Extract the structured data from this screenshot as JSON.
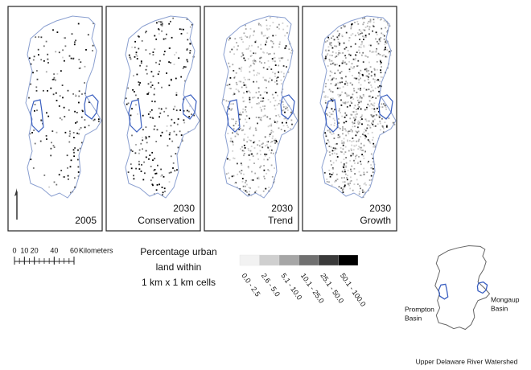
{
  "panels": [
    {
      "lines": [
        "2005"
      ]
    },
    {
      "lines": [
        "2030",
        "Conservation"
      ]
    },
    {
      "lines": [
        "2030",
        "Trend"
      ]
    },
    {
      "lines": [
        "2030",
        "Growth"
      ]
    }
  ],
  "scale_bar": {
    "ticks": [
      0,
      10,
      20,
      40,
      60
    ],
    "unit": "Kilometers"
  },
  "legend": {
    "title_lines": [
      "Percentage urban",
      "land within",
      "1 km x 1 km cells"
    ],
    "classes": [
      {
        "label": "0.0 - 2.5",
        "color": "#f2f2f2"
      },
      {
        "label": "2.6 - 5.0",
        "color": "#cfcfcf"
      },
      {
        "label": "5.1 - 10.0",
        "color": "#a6a6a6"
      },
      {
        "label": "10.1 - 25.0",
        "color": "#707070"
      },
      {
        "label": "25.1 - 50.0",
        "color": "#3a3a3a"
      },
      {
        "label": "50.1 - 100.0",
        "color": "#000000"
      }
    ]
  },
  "inset": {
    "left_basin": [
      "Prompton",
      "Basin"
    ],
    "right_basin": [
      "Mongaup",
      "Basin"
    ],
    "caption": "Upper Delaware River Watershed"
  }
}
